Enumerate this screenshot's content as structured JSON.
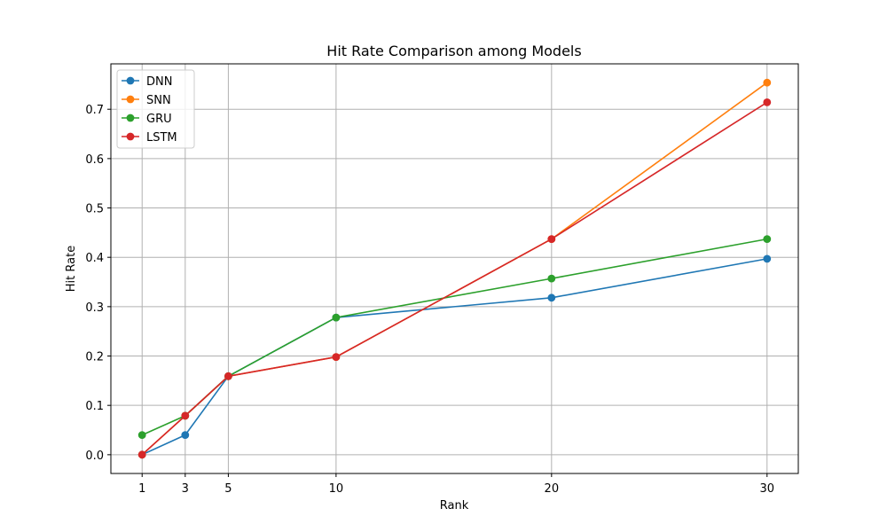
{
  "chart_data": {
    "type": "line",
    "title": "Hit Rate Comparison among Models",
    "xlabel": "Rank",
    "ylabel": "Hit Rate",
    "x": [
      1,
      3,
      5,
      10,
      20,
      30
    ],
    "xticks": [
      "1",
      "3",
      "5",
      "10",
      "20",
      "30"
    ],
    "yticks": [
      "0.0",
      "0.1",
      "0.2",
      "0.3",
      "0.4",
      "0.5",
      "0.6",
      "0.7"
    ],
    "xlim": [
      -0.45,
      31.45
    ],
    "ylim": [
      -0.038,
      0.792
    ],
    "grid": true,
    "legend_position": "top-left",
    "series": [
      {
        "name": "DNN",
        "color": "#1f77b4",
        "values": [
          0.0,
          0.04,
          0.159,
          0.278,
          0.318,
          0.397
        ]
      },
      {
        "name": "SNN",
        "color": "#ff7f0e",
        "values": [
          0.0,
          0.079,
          0.159,
          0.198,
          0.437,
          0.754
        ]
      },
      {
        "name": "GRU",
        "color": "#2ca02c",
        "values": [
          0.04,
          0.079,
          0.159,
          0.278,
          0.357,
          0.437
        ]
      },
      {
        "name": "LSTM",
        "color": "#d62728",
        "values": [
          0.0,
          0.079,
          0.159,
          0.198,
          0.437,
          0.714
        ]
      }
    ]
  }
}
